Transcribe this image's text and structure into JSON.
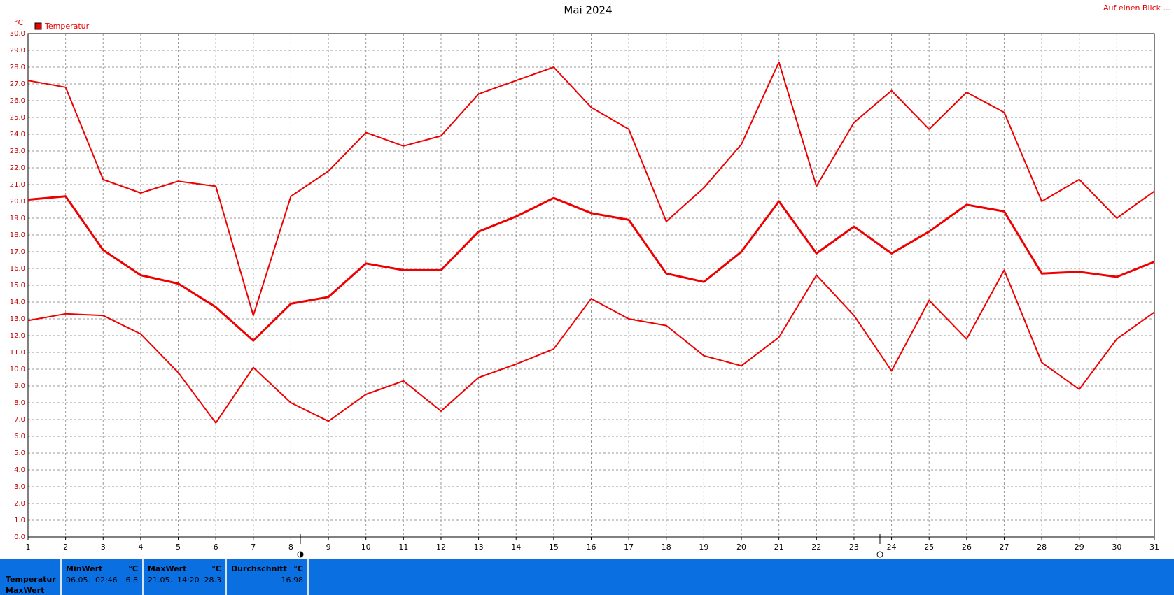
{
  "chart_data": {
    "type": "line",
    "title": "Mai 2024",
    "unit_label": "°C",
    "link": "Auf einen Blick ...",
    "x": [
      1,
      2,
      3,
      4,
      5,
      6,
      7,
      8,
      9,
      10,
      11,
      12,
      13,
      14,
      15,
      16,
      17,
      18,
      19,
      20,
      21,
      22,
      23,
      24,
      25,
      26,
      27,
      28,
      29,
      30,
      31
    ],
    "xlim": [
      1,
      31
    ],
    "xticks": [
      1,
      2,
      3,
      4,
      5,
      6,
      7,
      8,
      9,
      10,
      11,
      12,
      13,
      14,
      15,
      16,
      17,
      18,
      19,
      20,
      21,
      22,
      23,
      24,
      25,
      26,
      27,
      28,
      29,
      30,
      31
    ],
    "ylim": [
      0,
      30
    ],
    "yticks": [
      {
        "value": 0,
        "label": "0.0"
      },
      {
        "value": 1,
        "label": "1.0"
      },
      {
        "value": 2,
        "label": "2.0"
      },
      {
        "value": 3,
        "label": "3.0"
      },
      {
        "value": 4,
        "label": "4.0"
      },
      {
        "value": 5,
        "label": "5.0"
      },
      {
        "value": 6,
        "label": "6.0"
      },
      {
        "value": 7,
        "label": "7.0"
      },
      {
        "value": 8,
        "label": "8.0"
      },
      {
        "value": 9,
        "label": "9.0"
      },
      {
        "value": 10,
        "label": "10.0"
      },
      {
        "value": 11,
        "label": "11.0"
      },
      {
        "value": 12,
        "label": "12.0"
      },
      {
        "value": 13,
        "label": "13.0"
      },
      {
        "value": 14,
        "label": "14.0"
      },
      {
        "value": 15,
        "label": "15.0"
      },
      {
        "value": 16,
        "label": "16.0"
      },
      {
        "value": 17,
        "label": "17.0"
      },
      {
        "value": 18,
        "label": "18.0"
      },
      {
        "value": 19,
        "label": "19.0"
      },
      {
        "value": 20,
        "label": "20.0"
      },
      {
        "value": 21,
        "label": "21.0"
      },
      {
        "value": 22,
        "label": "22.0"
      },
      {
        "value": 23,
        "label": "23.0"
      },
      {
        "value": 24,
        "label": "24.0"
      },
      {
        "value": 25,
        "label": "25.0"
      },
      {
        "value": 26,
        "label": "26.0"
      },
      {
        "value": 27,
        "label": "27.0"
      },
      {
        "value": 28,
        "label": "28.0"
      },
      {
        "value": 29,
        "label": "29.0"
      },
      {
        "value": 30,
        "label": "30.0"
      }
    ],
    "grid": true,
    "series": [
      {
        "name": "Temperatur",
        "color": "#ee0000",
        "width": 3,
        "values": [
          20.1,
          20.3,
          17.1,
          15.6,
          15.1,
          13.7,
          11.7,
          13.9,
          14.3,
          16.3,
          15.9,
          15.9,
          18.2,
          19.1,
          20.2,
          19.3,
          18.9,
          15.7,
          15.2,
          17.0,
          20.0,
          16.9,
          18.5,
          16.9,
          18.2,
          19.8,
          19.4,
          15.7,
          15.8,
          15.5,
          16.4
        ]
      },
      {
        "color": "#ee0000",
        "width": 2,
        "values": [
          27.2,
          26.8,
          21.3,
          20.5,
          21.2,
          20.9,
          13.2,
          20.3,
          21.8,
          24.1,
          23.3,
          23.9,
          26.4,
          27.2,
          28.0,
          25.6,
          24.3,
          18.8,
          20.8,
          23.4,
          28.3,
          20.9,
          24.7,
          26.6,
          24.3,
          26.5,
          25.3,
          20.0,
          21.3,
          19.0,
          20.6
        ]
      },
      {
        "color": "#ee0000",
        "width": 2,
        "values": [
          12.9,
          13.3,
          13.2,
          12.1,
          9.8,
          6.8,
          10.1,
          8.0,
          6.9,
          8.5,
          9.3,
          7.5,
          9.5,
          10.3,
          11.2,
          14.2,
          13.0,
          12.6,
          10.8,
          10.2,
          11.9,
          15.6,
          13.2,
          9.9,
          14.1,
          11.8,
          15.9,
          10.4,
          8.8,
          11.8,
          13.4
        ]
      }
    ]
  },
  "summary": {
    "rows": [
      "Temperatur",
      "MaxWert"
    ],
    "min": {
      "header": "MinWert",
      "unit": "°C",
      "time": "06.05.  02:46",
      "value": 6.8
    },
    "max": {
      "header": "MaxWert",
      "unit": "°C",
      "time": "21.05.  14:20",
      "value": 28.3
    },
    "avg": {
      "header": "Durchschnitt",
      "unit": "°C",
      "value": 16.98
    }
  }
}
